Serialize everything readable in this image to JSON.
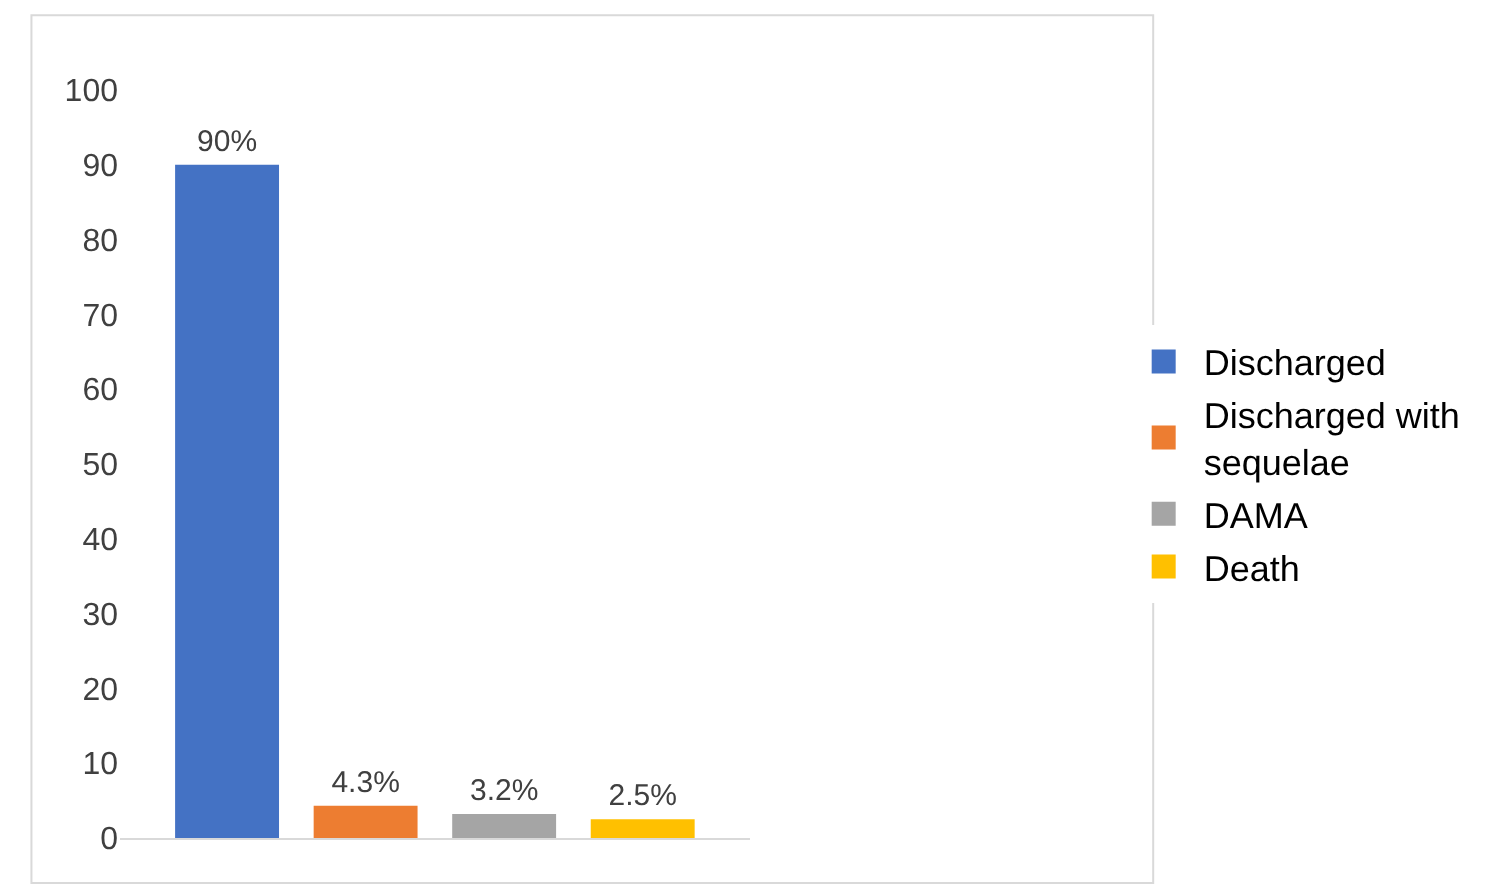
{
  "chart_data": {
    "type": "bar",
    "categories": [
      null
    ],
    "series": [
      {
        "name": "Discharged",
        "color": "#4472c4",
        "values": [
          90
        ],
        "value_labels": [
          "90%"
        ]
      },
      {
        "name": "Discharged with sequelae",
        "color": "#ed7d31",
        "values": [
          4.3
        ],
        "value_labels": [
          "4.3%"
        ]
      },
      {
        "name": "DAMA",
        "color": "#a5a5a5",
        "values": [
          3.2
        ],
        "value_labels": [
          "3.2%"
        ]
      },
      {
        "name": "Death",
        "color": "#ffc000",
        "values": [
          2.5
        ],
        "value_labels": [
          "2.5%"
        ]
      }
    ],
    "ylim": [
      0,
      100
    ],
    "yticks": [
      0,
      10,
      20,
      30,
      40,
      50,
      60,
      70,
      80,
      90,
      100
    ],
    "grid": false,
    "legend": "right"
  }
}
